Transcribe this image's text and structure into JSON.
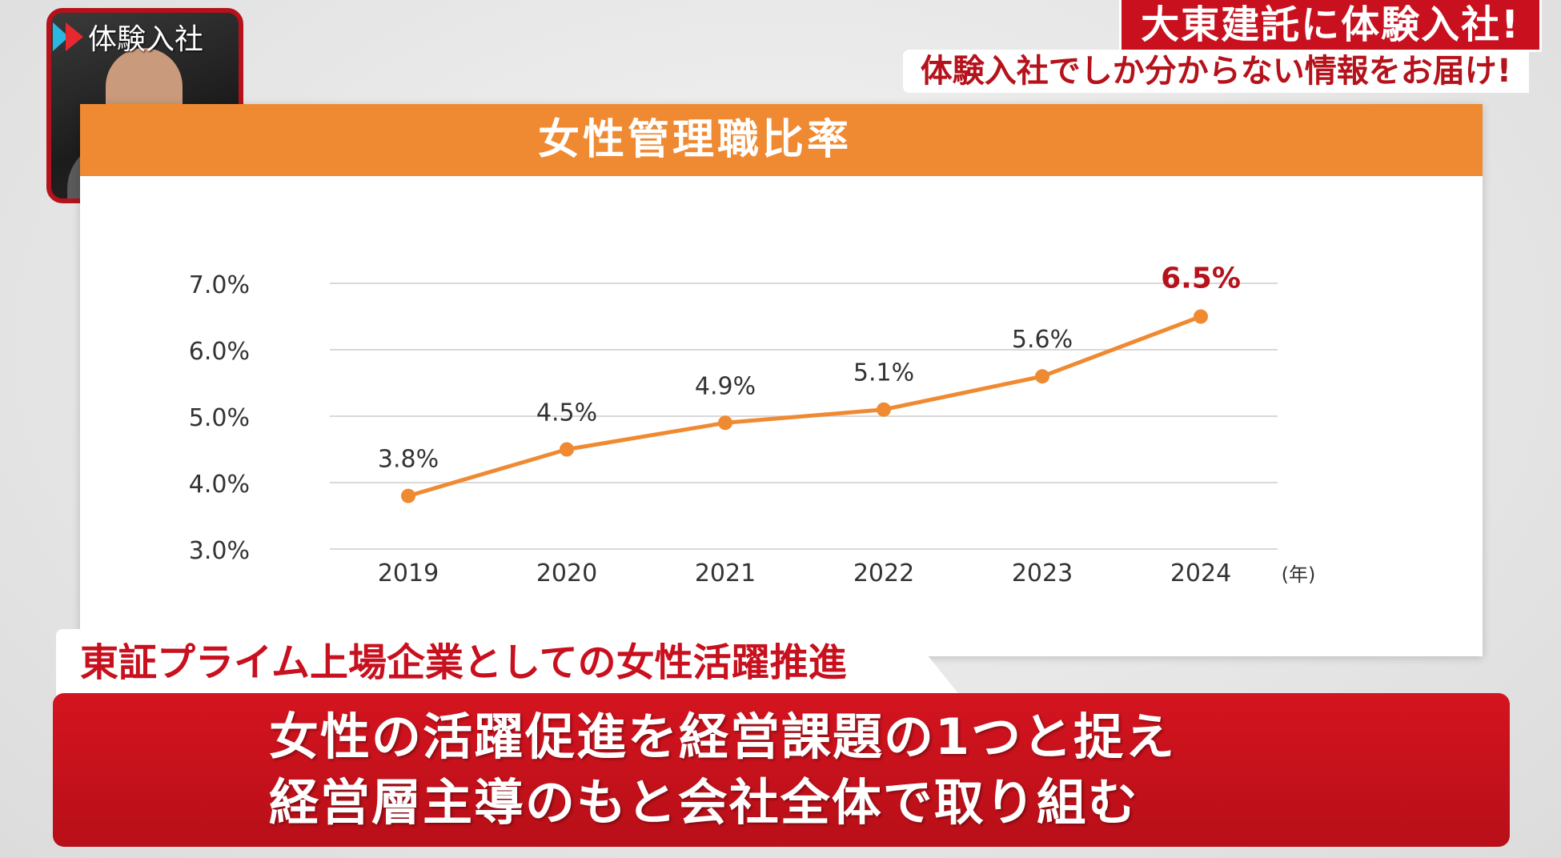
{
  "pip": {
    "label": "体験入社"
  },
  "banner": {
    "main": "大東建託に体験入社!",
    "sub": "体験入社でしか分からない情報をお届け!"
  },
  "chart_data": {
    "type": "line",
    "title": "女性管理職比率",
    "categories": [
      "2019",
      "2020",
      "2021",
      "2022",
      "2023",
      "2024"
    ],
    "values": [
      3.8,
      4.5,
      4.9,
      5.1,
      5.6,
      6.5
    ],
    "data_labels": [
      "3.8%",
      "4.5%",
      "4.9%",
      "5.1%",
      "5.6%",
      "6.5%"
    ],
    "y_ticks": [
      3.0,
      4.0,
      5.0,
      6.0,
      7.0
    ],
    "y_tick_labels": [
      "3.0%",
      "4.0%",
      "5.0%",
      "6.0%",
      "7.0%"
    ],
    "ylim": [
      3.0,
      7.0
    ],
    "xlabel": "(年)",
    "ylabel": "",
    "grid": true,
    "line_color": "#ef8a32",
    "highlight_color": "#b5121b",
    "header_color": "#ef8a32"
  },
  "subtitle": "東証プライム上場企業としての女性活躍推進",
  "caption": {
    "line1": "女性の活躍促進を経営課題の1つと捉え",
    "line2": "経営層主導のもと会社全体で取り組む"
  },
  "colors": {
    "brand_red": "#c8101e"
  }
}
